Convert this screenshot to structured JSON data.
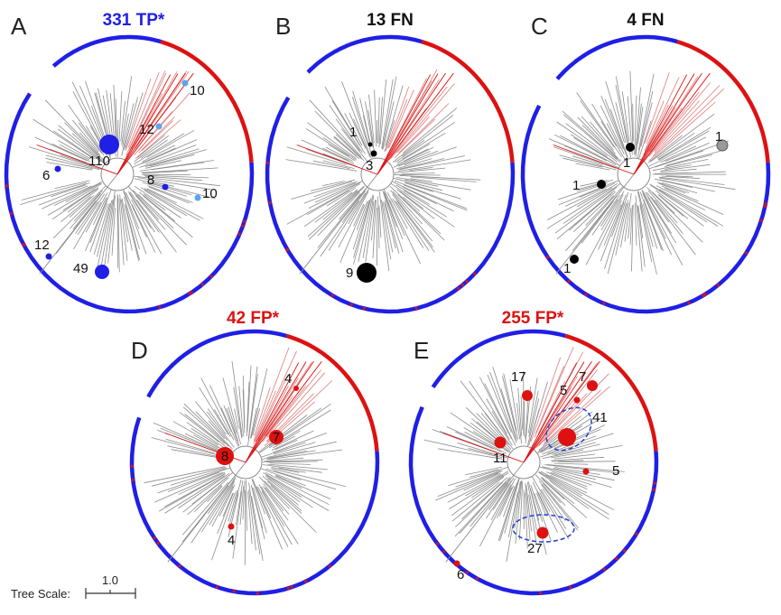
{
  "colors": {
    "blue": "#1f1fe6",
    "red": "#dd1111",
    "light_blue": "#5aa6ec",
    "black": "#000000",
    "grey": "#9a9a9a",
    "branch": "#8c8c8c",
    "red_branch": "#e07b7b",
    "dashed_outline": "#2040d0"
  },
  "panels": [
    {
      "letter": "A",
      "title": "331 TP*",
      "title_color": "#1f1fe6",
      "markers": [
        {
          "label": "10",
          "color": "#5aa6ec"
        },
        {
          "label": "12",
          "color": "#5aa6ec"
        },
        {
          "label": "110",
          "color": "#1f1fe6"
        },
        {
          "label": "6",
          "color": "#1f1fe6"
        },
        {
          "label": "8",
          "color": "#1f1fe6"
        },
        {
          "label": "10",
          "color": "#5aa6ec"
        },
        {
          "label": "12",
          "color": "#1f1fe6"
        },
        {
          "label": "49",
          "color": "#1f1fe6"
        }
      ]
    },
    {
      "letter": "B",
      "title": "13 FN",
      "title_color": "#111111",
      "markers": [
        {
          "label": "1",
          "color": "#000000"
        },
        {
          "label": "3",
          "color": "#000000"
        },
        {
          "label": "9",
          "color": "#000000"
        }
      ]
    },
    {
      "letter": "C",
      "title": "4 FN",
      "title_color": "#111111",
      "markers": [
        {
          "label": "1",
          "color": "#000000"
        },
        {
          "label": "1",
          "color": "#9a9a9a"
        },
        {
          "label": "1",
          "color": "#000000"
        },
        {
          "label": "1",
          "color": "#000000"
        }
      ]
    },
    {
      "letter": "D",
      "title": "42 FP*",
      "title_color": "#dd1111",
      "markers": [
        {
          "label": "4",
          "color": "#dd1111"
        },
        {
          "label": "8",
          "color": "#dd1111"
        },
        {
          "label": "7",
          "color": "#dd1111"
        },
        {
          "label": "4",
          "color": "#dd1111"
        }
      ]
    },
    {
      "letter": "E",
      "title": "255 FP*",
      "title_color": "#dd1111",
      "markers": [
        {
          "label": "17",
          "color": "#dd1111"
        },
        {
          "label": "7",
          "color": "#dd1111"
        },
        {
          "label": "5",
          "color": "#dd1111"
        },
        {
          "label": "41",
          "color": "#dd1111"
        },
        {
          "label": "11",
          "color": "#dd1111"
        },
        {
          "label": "5",
          "color": "#dd1111"
        },
        {
          "label": "27",
          "color": "#dd1111"
        },
        {
          "label": "6",
          "color": "#dd1111"
        }
      ]
    }
  ],
  "scale_bar": {
    "label": "Tree Scale:",
    "value": "1.0"
  }
}
